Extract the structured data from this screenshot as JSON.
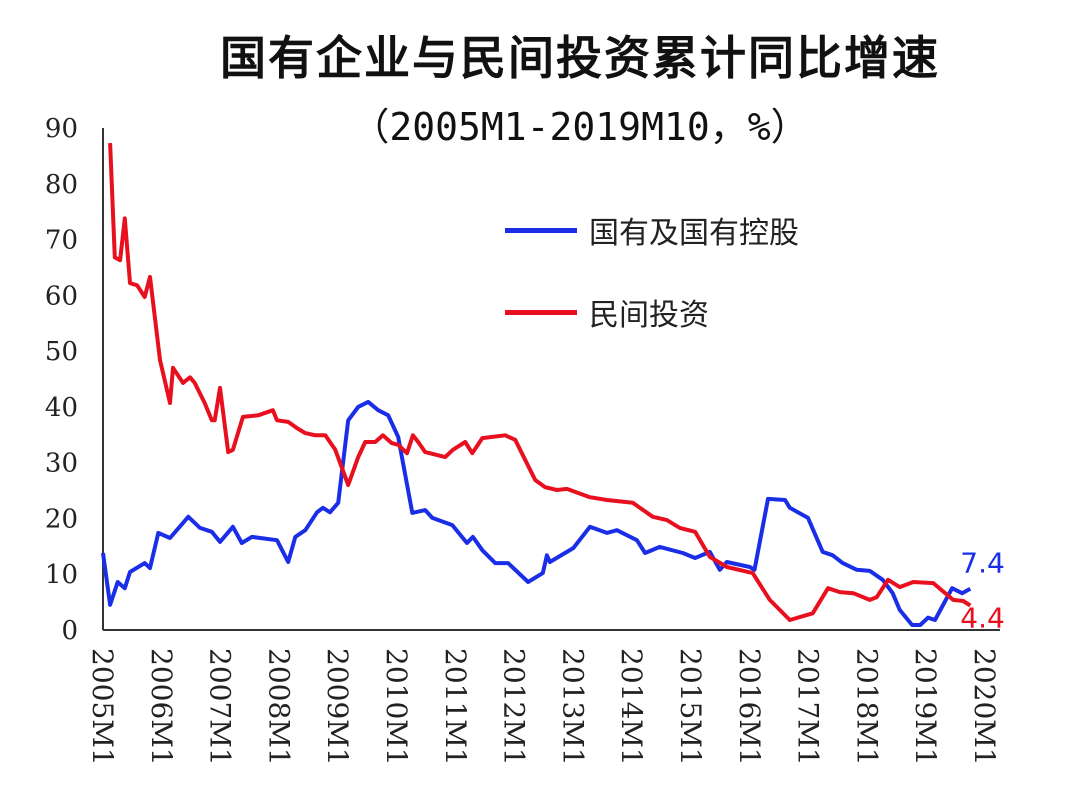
{
  "chart_data": {
    "type": "line",
    "title": "国有企业与民间投资累计同比增速",
    "subtitle": "（2005M1-2019M10，%）",
    "xlabel": "",
    "ylabel": "",
    "ylim": [
      0,
      90
    ],
    "xlim": [
      2005,
      2020
    ],
    "yticks": [
      "0",
      "10",
      "20",
      "30",
      "40",
      "50",
      "60",
      "70",
      "80",
      "90"
    ],
    "xticks": [
      "2005M1",
      "2006M1",
      "2007M1",
      "2008M1",
      "2009M1",
      "2010M1",
      "2011M1",
      "2012M1",
      "2013M1",
      "2014M1",
      "2015M1",
      "2016M1",
      "2017M1",
      "2018M1",
      "2019M1",
      "2020M1"
    ],
    "grid": false,
    "legend_position": "upper-center",
    "series": [
      {
        "name": "国有及国有控股",
        "color": "#1a2ee8",
        "end_label": "7.4",
        "points": [
          [
            2005.0,
            13.8
          ],
          [
            2005.12,
            4.5
          ],
          [
            2005.25,
            8.6
          ],
          [
            2005.37,
            7.5
          ],
          [
            2005.46,
            10.4
          ],
          [
            2005.71,
            12
          ],
          [
            2005.8,
            11.1
          ],
          [
            2005.94,
            17.4
          ],
          [
            2006.14,
            16.5
          ],
          [
            2006.45,
            20.3
          ],
          [
            2006.65,
            18.3
          ],
          [
            2006.85,
            17.6
          ],
          [
            2006.99,
            15.8
          ],
          [
            2007.21,
            18.5
          ],
          [
            2007.36,
            15.6
          ],
          [
            2007.53,
            16.7
          ],
          [
            2007.96,
            16.1
          ],
          [
            2008.15,
            12.2
          ],
          [
            2008.27,
            16.7
          ],
          [
            2008.44,
            17.9
          ],
          [
            2008.64,
            21.1
          ],
          [
            2008.74,
            21.9
          ],
          [
            2008.86,
            21.1
          ],
          [
            2009.0,
            22.8
          ],
          [
            2009.17,
            37.6
          ],
          [
            2009.34,
            40
          ],
          [
            2009.51,
            40.9
          ],
          [
            2009.68,
            39.4
          ],
          [
            2009.85,
            38.5
          ],
          [
            2010.02,
            34.6
          ],
          [
            2010.26,
            21
          ],
          [
            2010.48,
            21.5
          ],
          [
            2010.6,
            20.1
          ],
          [
            2010.94,
            18.8
          ],
          [
            2011.19,
            15.6
          ],
          [
            2011.29,
            16.7
          ],
          [
            2011.45,
            14.3
          ],
          [
            2011.67,
            12
          ],
          [
            2011.89,
            12
          ],
          [
            2012.23,
            8.6
          ],
          [
            2012.48,
            10.2
          ],
          [
            2012.55,
            13.4
          ],
          [
            2012.6,
            12.2
          ],
          [
            2013.0,
            14.7
          ],
          [
            2013.28,
            18.5
          ],
          [
            2013.57,
            17.4
          ],
          [
            2013.74,
            17.9
          ],
          [
            2014.08,
            16.1
          ],
          [
            2014.22,
            13.8
          ],
          [
            2014.47,
            14.9
          ],
          [
            2014.86,
            13.8
          ],
          [
            2015.07,
            12.9
          ],
          [
            2015.32,
            14
          ],
          [
            2015.49,
            10.8
          ],
          [
            2015.61,
            12.2
          ],
          [
            2016.0,
            11.3
          ],
          [
            2016.08,
            10.8
          ],
          [
            2016.31,
            23.5
          ],
          [
            2016.6,
            23.3
          ],
          [
            2016.68,
            21.9
          ],
          [
            2016.99,
            20.1
          ],
          [
            2017.24,
            14
          ],
          [
            2017.41,
            13.4
          ],
          [
            2017.58,
            12
          ],
          [
            2017.82,
            10.8
          ],
          [
            2018.04,
            10.6
          ],
          [
            2018.26,
            9
          ],
          [
            2018.43,
            6.6
          ],
          [
            2018.55,
            3.6
          ],
          [
            2018.76,
            0.9
          ],
          [
            2018.9,
            0.9
          ],
          [
            2019.03,
            2.2
          ],
          [
            2019.15,
            1.8
          ],
          [
            2019.44,
            7.5
          ],
          [
            2019.61,
            6.6
          ],
          [
            2019.75,
            7.4
          ]
        ]
      },
      {
        "name": "民间投资",
        "color": "#e8101e",
        "end_label": "4.4",
        "points": [
          [
            2005.12,
            87.3
          ],
          [
            2005.2,
            66.8
          ],
          [
            2005.29,
            66.3
          ],
          [
            2005.37,
            73.8
          ],
          [
            2005.46,
            62.2
          ],
          [
            2005.58,
            61.8
          ],
          [
            2005.71,
            59.7
          ],
          [
            2005.8,
            63.3
          ],
          [
            2005.97,
            48.4
          ],
          [
            2006.14,
            40.7
          ],
          [
            2006.19,
            47
          ],
          [
            2006.36,
            44.3
          ],
          [
            2006.48,
            45.3
          ],
          [
            2006.56,
            44.3
          ],
          [
            2006.73,
            40.7
          ],
          [
            2006.85,
            37.6
          ],
          [
            2006.9,
            37.6
          ],
          [
            2006.99,
            43.4
          ],
          [
            2007.13,
            31.9
          ],
          [
            2007.21,
            32.3
          ],
          [
            2007.38,
            38.2
          ],
          [
            2007.64,
            38.5
          ],
          [
            2007.89,
            39.4
          ],
          [
            2007.96,
            37.6
          ],
          [
            2008.15,
            37.3
          ],
          [
            2008.3,
            36.2
          ],
          [
            2008.44,
            35.3
          ],
          [
            2008.61,
            34.9
          ],
          [
            2008.78,
            34.9
          ],
          [
            2008.95,
            32.3
          ],
          [
            2009.17,
            26
          ],
          [
            2009.34,
            31
          ],
          [
            2009.46,
            33.7
          ],
          [
            2009.63,
            33.7
          ],
          [
            2009.76,
            34.9
          ],
          [
            2009.91,
            33.5
          ],
          [
            2010.02,
            33.2
          ],
          [
            2010.17,
            31.7
          ],
          [
            2010.27,
            34.9
          ],
          [
            2010.36,
            33.7
          ],
          [
            2010.48,
            31.9
          ],
          [
            2010.82,
            31
          ],
          [
            2010.95,
            32.3
          ],
          [
            2011.16,
            33.7
          ],
          [
            2011.28,
            31.7
          ],
          [
            2011.45,
            34.4
          ],
          [
            2011.84,
            34.9
          ],
          [
            2012.01,
            34.1
          ],
          [
            2012.35,
            26.9
          ],
          [
            2012.52,
            25.6
          ],
          [
            2012.72,
            25.1
          ],
          [
            2012.89,
            25.3
          ],
          [
            2013.28,
            23.8
          ],
          [
            2013.57,
            23.3
          ],
          [
            2014.01,
            22.8
          ],
          [
            2014.35,
            20.3
          ],
          [
            2014.59,
            19.7
          ],
          [
            2014.81,
            18.3
          ],
          [
            2015.07,
            17.6
          ],
          [
            2015.32,
            13.1
          ],
          [
            2015.61,
            11.3
          ],
          [
            2016.05,
            10.2
          ],
          [
            2016.34,
            5.4
          ],
          [
            2016.68,
            1.8
          ],
          [
            2017.07,
            3
          ],
          [
            2017.33,
            7.5
          ],
          [
            2017.53,
            6.8
          ],
          [
            2017.76,
            6.6
          ],
          [
            2018.04,
            5.4
          ],
          [
            2018.16,
            5.9
          ],
          [
            2018.35,
            9
          ],
          [
            2018.55,
            7.7
          ],
          [
            2018.78,
            8.6
          ],
          [
            2019.12,
            8.4
          ],
          [
            2019.46,
            5.4
          ],
          [
            2019.63,
            5.2
          ],
          [
            2019.75,
            4.4
          ]
        ]
      }
    ]
  }
}
